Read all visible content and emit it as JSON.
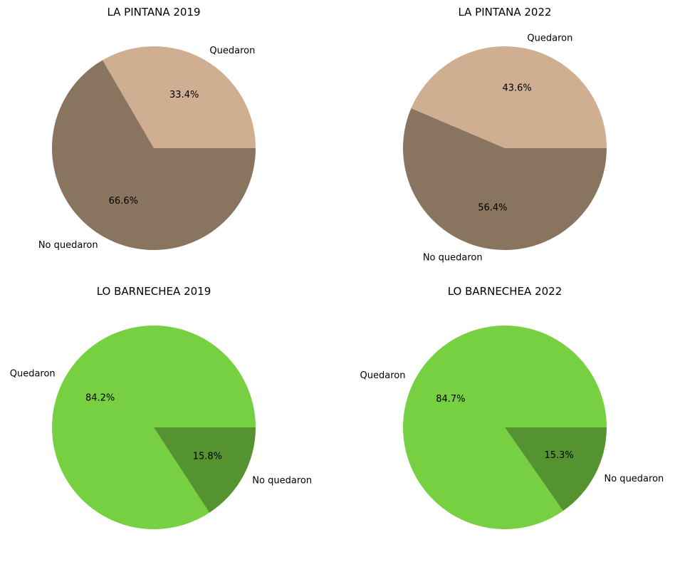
{
  "chart_data": [
    {
      "type": "pie",
      "title": "LA PINTANA 2019",
      "slices": [
        {
          "label": "Quedaron",
          "value": 33.4,
          "pct_label": "33.4%",
          "color": "#cfae91"
        },
        {
          "label": "No quedaron",
          "value": 66.6,
          "pct_label": "66.6%",
          "color": "#89745f"
        }
      ]
    },
    {
      "type": "pie",
      "title": "LA PINTANA 2022",
      "slices": [
        {
          "label": "Quedaron",
          "value": 43.6,
          "pct_label": "43.6%",
          "color": "#cfae91"
        },
        {
          "label": "No quedaron",
          "value": 56.4,
          "pct_label": "56.4%",
          "color": "#89745f"
        }
      ]
    },
    {
      "type": "pie",
      "title": "LO BARNECHEA 2019",
      "slices": [
        {
          "label": "Quedaron",
          "value": 84.2,
          "pct_label": "84.2%",
          "color": "#77d042"
        },
        {
          "label": "No quedaron",
          "value": 15.8,
          "pct_label": "15.8%",
          "color": "#54932f"
        }
      ]
    },
    {
      "type": "pie",
      "title": "LO BARNECHEA 2022",
      "slices": [
        {
          "label": "Quedaron",
          "value": 84.7,
          "pct_label": "84.7%",
          "color": "#77d042"
        },
        {
          "label": "No quedaron",
          "value": 15.3,
          "pct_label": "15.3%",
          "color": "#54932f"
        }
      ]
    }
  ]
}
